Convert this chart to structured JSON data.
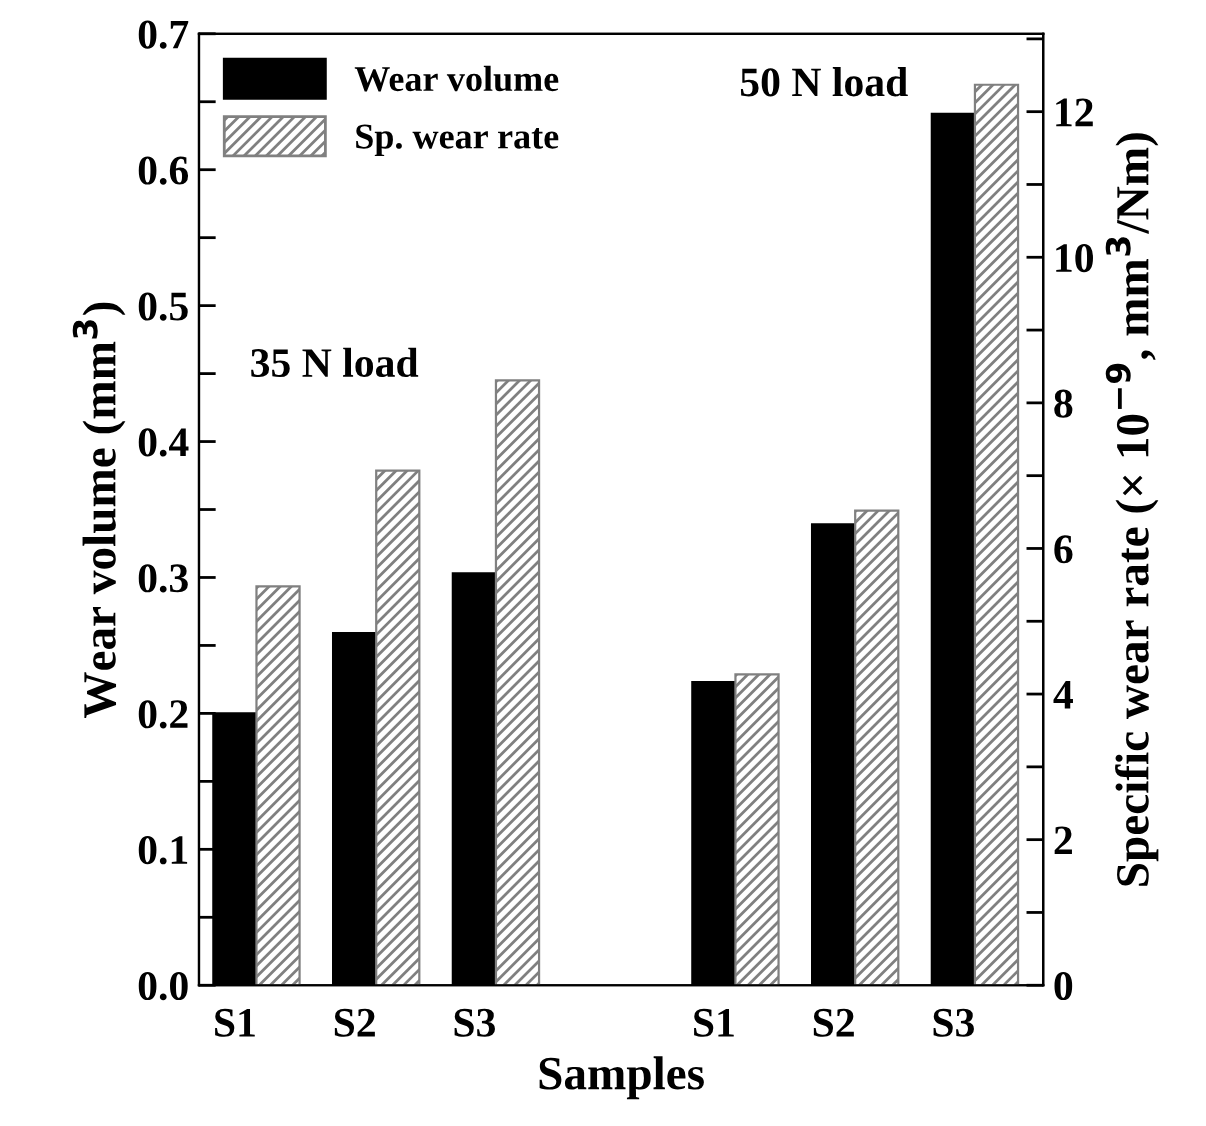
{
  "chart_data": {
    "type": "bar",
    "xlabel": "Samples",
    "ylabel": "Wear volume (mm$^{3}$)",
    "y2label": "Specific wear rate (× 10$^{−9}$, mm$^{3}$/Nm)",
    "categories": [
      "S1",
      "S2",
      "S3",
      null,
      "S1",
      "S2",
      "S3"
    ],
    "series": [
      {
        "name": "Wear volume",
        "color": "#000000",
        "values": [
          0.2,
          0.259,
          0.303,
          null,
          0.223,
          0.339,
          0.641
        ]
      },
      {
        "name": "Sp. wear rate",
        "color": "#808080",
        "axis": "y2",
        "values": [
          5.48,
          7.07,
          8.31,
          null,
          4.27,
          6.52,
          12.37
        ]
      }
    ],
    "annotations": [
      "35 N load",
      "50 N load"
    ],
    "ylim": [
      0,
      0.7
    ],
    "yticks": [
      {
        "value": 0,
        "label": "0.0"
      },
      {
        "value": 0.05,
        "label": null
      },
      {
        "value": 0.1,
        "label": "0.1"
      },
      {
        "value": 0.15,
        "label": null
      },
      {
        "value": 0.2,
        "label": "0.2"
      },
      {
        "value": 0.25,
        "label": null
      },
      {
        "value": 0.3,
        "label": "0.3"
      },
      {
        "value": 0.35,
        "label": null
      },
      {
        "value": 0.4,
        "label": "0.4"
      },
      {
        "value": 0.45,
        "label": null
      },
      {
        "value": 0.5,
        "label": "0.5"
      },
      {
        "value": 0.55,
        "label": null
      },
      {
        "value": 0.6,
        "label": "0.6"
      },
      {
        "value": 0.65,
        "label": null
      },
      {
        "value": 0.7,
        "label": "0.7"
      }
    ],
    "y2lim": [
      0,
      13.07
    ],
    "y2ticks": [
      0,
      {
        "value": 1,
        "label": null
      },
      2,
      {
        "value": 3,
        "label": null
      },
      4,
      {
        "value": 5,
        "label": null
      },
      6,
      {
        "value": 7,
        "label": null
      },
      8,
      {
        "value": 9,
        "label": null
      },
      10,
      {
        "value": 11,
        "label": null
      },
      12,
      {
        "value": 13,
        "label": null
      }
    ],
    "legend": "top left",
    "grid": false
  }
}
